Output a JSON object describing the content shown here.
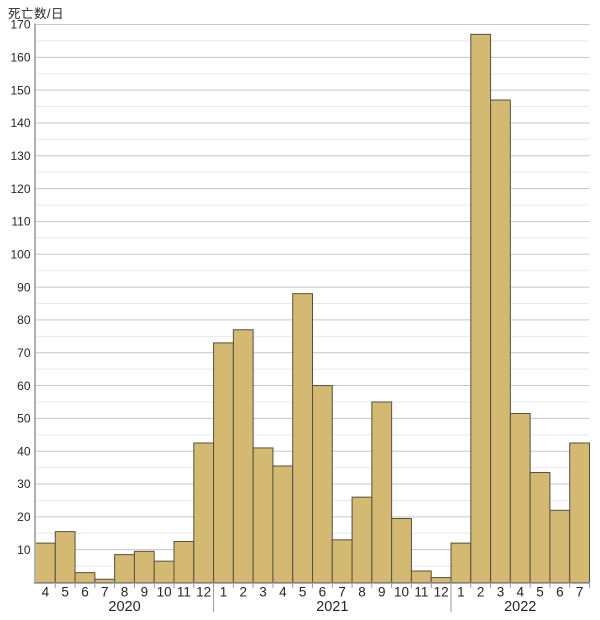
{
  "page": {
    "background": "#ffffff"
  },
  "chart_data": {
    "type": "bar",
    "title": "",
    "ylabel": "死亡数/日",
    "xlabel": "",
    "ylim": [
      0,
      170
    ],
    "ytick_step": 10,
    "minor_grid_step": 5,
    "grid": true,
    "legend": "none",
    "categories": [
      "4",
      "5",
      "6",
      "7",
      "8",
      "9",
      "10",
      "11",
      "12",
      "1",
      "2",
      "3",
      "4",
      "5",
      "6",
      "7",
      "8",
      "9",
      "10",
      "11",
      "12",
      "1",
      "2",
      "3",
      "4",
      "5",
      "6",
      "7"
    ],
    "values": [
      12,
      15.5,
      3,
      1,
      8.5,
      9.5,
      6.5,
      12.5,
      42.5,
      73,
      77,
      41,
      35.5,
      88,
      60,
      13,
      26,
      55,
      19.5,
      3.5,
      1.5,
      12,
      167,
      147,
      51.5,
      33.5,
      22,
      42.5
    ],
    "year_groups": [
      {
        "label": "2020",
        "start_index": 0,
        "count": 9
      },
      {
        "label": "2021",
        "start_index": 9,
        "count": 12
      },
      {
        "label": "2022",
        "start_index": 21,
        "count": 7
      }
    ],
    "y_tick_labels": [
      "10",
      "20",
      "30",
      "40",
      "50",
      "60",
      "70",
      "80",
      "90",
      "100",
      "110",
      "120",
      "130",
      "140",
      "150",
      "160",
      "170"
    ],
    "colors": {
      "bar_fill": "#d3b972",
      "bar_stroke": "#55503f",
      "grid_major": "#c6c6c6",
      "grid_minor": "#e8e8e8",
      "axis": "#b0b0b0",
      "tick": "#999999",
      "separator": "#999999",
      "text": "#262626"
    }
  }
}
